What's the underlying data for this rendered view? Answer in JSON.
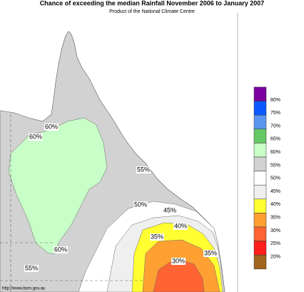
{
  "header": {
    "title": "Chance of exceeding the median Rainfall November 2006 to January 2007",
    "subtitle": "Product of the National Climate Centre"
  },
  "legend": {
    "items": [
      {
        "label": "80%",
        "color": "#7a00a0"
      },
      {
        "label": "75%",
        "color": "#0a5aff"
      },
      {
        "label": "70%",
        "color": "#5a96f0"
      },
      {
        "label": "65%",
        "color": "#64c864"
      },
      {
        "label": "60%",
        "color": "#c8ffc8"
      },
      {
        "label": "55%",
        "color": "#d2d2d2"
      },
      {
        "label": "50%",
        "color": "#ffffff"
      },
      {
        "label": "45%",
        "color": "#efefef"
      },
      {
        "label": "40%",
        "color": "#ffff32"
      },
      {
        "label": "35%",
        "color": "#ffa032"
      },
      {
        "label": "30%",
        "color": "#ff6432"
      },
      {
        "label": "25%",
        "color": "#ff1e1e"
      },
      {
        "label": "20%",
        "color": "#a0641e"
      }
    ]
  },
  "contour_labels": [
    "60%",
    "60%",
    "55%",
    "50%",
    "45%",
    "40%",
    "35%",
    "35%",
    "30%",
    "60%",
    "55%"
  ],
  "footer": {
    "url": "http://www.bom.gov.au"
  }
}
